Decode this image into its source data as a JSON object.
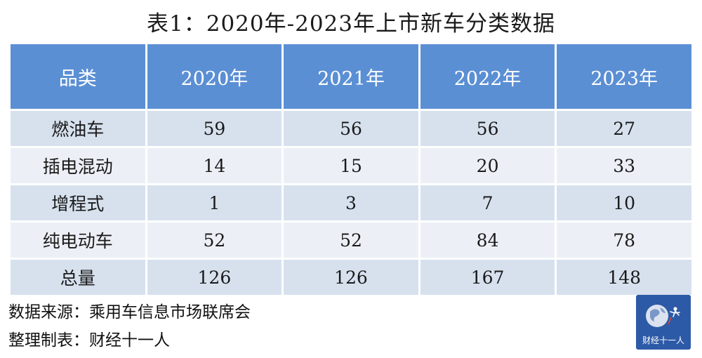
{
  "title": "表1：2020年-2023年上市新车分类数据",
  "table": {
    "headers": [
      "品类",
      "2020年",
      "2021年",
      "2022年",
      "2023年"
    ],
    "rows": [
      [
        "燃油车",
        "59",
        "56",
        "56",
        "27"
      ],
      [
        "插电混动",
        "14",
        "15",
        "20",
        "33"
      ],
      [
        "增程式",
        "1",
        "3",
        "7",
        "10"
      ],
      [
        "纯电动车",
        "52",
        "52",
        "84",
        "78"
      ],
      [
        "总量",
        "126",
        "126",
        "167",
        "148"
      ]
    ]
  },
  "footer": {
    "source": "数据来源：乘用车信息市场联席会",
    "maker": "整理制表：财经十一人"
  },
  "logo": {
    "text": "财经十一人",
    "background": "#2d5aa6"
  },
  "colors": {
    "header_bg": "#5b8fd4",
    "row_odd_bg": "#d7e1ee",
    "row_even_bg": "#ecf0f6"
  }
}
